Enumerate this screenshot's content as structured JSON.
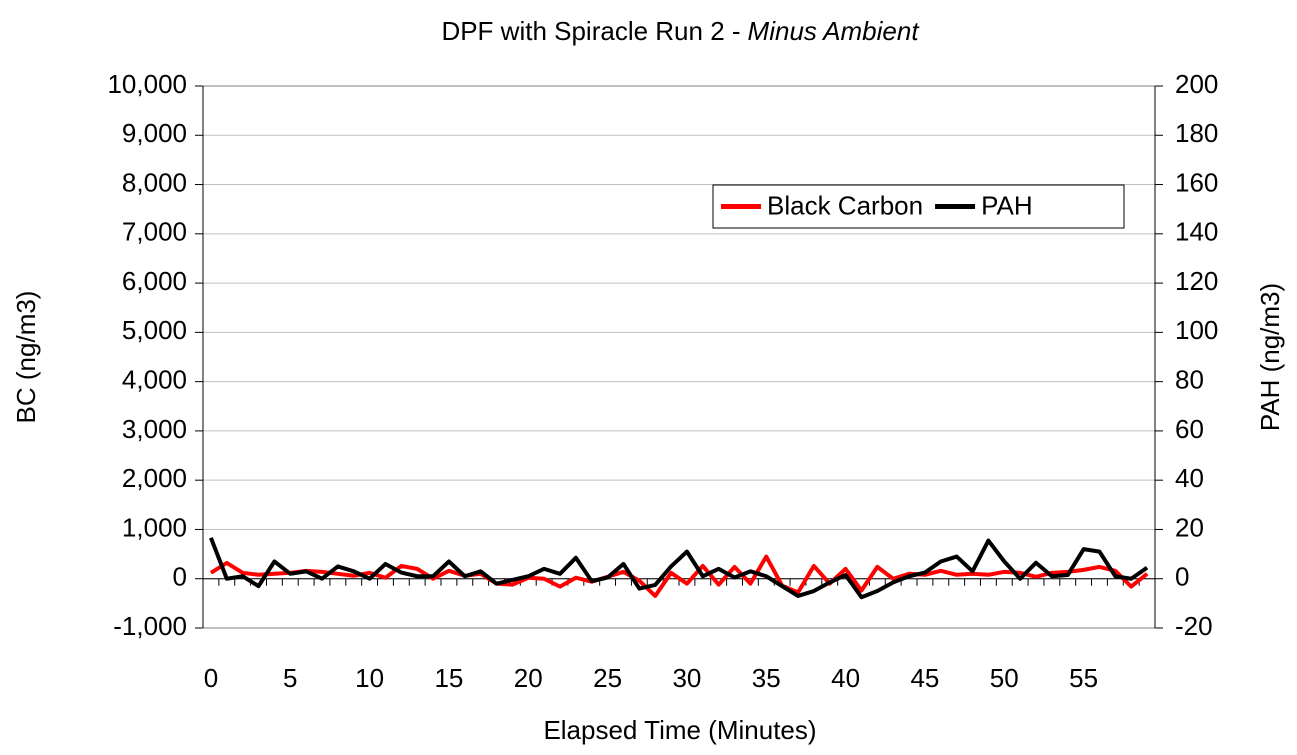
{
  "chart_data": {
    "type": "line",
    "title": "DPF with Spiracle Run 2 -",
    "title_emphasis": "Minus Ambient",
    "x_label": "Elapsed Time (Minutes)",
    "y_label": "BC (ng/m3)",
    "y2_label": "PAH (ng/m3)",
    "categories": [
      0,
      null,
      null,
      null,
      null,
      5,
      null,
      null,
      null,
      null,
      10,
      null,
      null,
      null,
      null,
      15,
      null,
      null,
      null,
      null,
      20,
      null,
      null,
      null,
      null,
      25,
      null,
      null,
      null,
      null,
      30,
      null,
      null,
      null,
      null,
      35,
      null,
      null,
      null,
      null,
      40,
      null,
      null,
      null,
      null,
      45,
      null,
      null,
      null,
      null,
      50,
      null,
      null,
      null,
      null,
      55,
      null,
      null,
      null,
      null
    ],
    "ylim": [
      -1000,
      10000
    ],
    "yticks": [
      {
        "value": -1000,
        "label": "-1,000"
      },
      0,
      {
        "value": 1000,
        "label": "1,000"
      },
      {
        "value": 2000,
        "label": "2,000"
      },
      {
        "value": 3000,
        "label": "3,000"
      },
      {
        "value": 4000,
        "label": "4,000"
      },
      {
        "value": 5000,
        "label": "5,000"
      },
      {
        "value": 6000,
        "label": "6,000"
      },
      {
        "value": 7000,
        "label": "7,000"
      },
      {
        "value": 8000,
        "label": "8,000"
      },
      {
        "value": 9000,
        "label": "9,000"
      },
      {
        "value": 10000,
        "label": "10,000"
      }
    ],
    "y2lim": [
      -20,
      200
    ],
    "y2ticks": [
      -20,
      0,
      20,
      40,
      60,
      80,
      100,
      120,
      140,
      160,
      180,
      200
    ],
    "grid": true,
    "legend": "upper right",
    "series": [
      {
        "name": "Black Carbon",
        "color": "#ff0000",
        "values": [
          120,
          320,
          120,
          80,
          100,
          120,
          160,
          140,
          100,
          60,
          120,
          20,
          260,
          200,
          0,
          160,
          60,
          100,
          -100,
          -120,
          20,
          0,
          -160,
          20,
          -60,
          40,
          140,
          -40,
          -350,
          120,
          -100,
          260,
          -120,
          240,
          -100,
          450,
          -140,
          -280,
          260,
          -100,
          200,
          -240,
          240,
          0,
          100,
          80,
          160,
          80,
          100,
          80,
          140,
          120,
          40,
          120,
          140,
          180,
          240,
          160,
          -160,
          100
        ]
      },
      {
        "name": "PAH",
        "color": "#000000",
        "axis": "y2",
        "values": [
          16.6,
          0,
          1,
          -3,
          7,
          2,
          3,
          0,
          5,
          3,
          0,
          6,
          2.5,
          1,
          1,
          7,
          1,
          3,
          -2,
          -0.5,
          1,
          4,
          2,
          8.5,
          -1,
          0.5,
          6,
          -4,
          -2.5,
          5,
          11,
          1,
          4,
          0.5,
          3,
          1,
          -3,
          -7,
          -5,
          -1.5,
          1.5,
          -7.5,
          -5,
          -1.5,
          1,
          2.5,
          7,
          9,
          3,
          15.5,
          7,
          0,
          6.5,
          1,
          1.5,
          12,
          11,
          1,
          0,
          4.5
        ]
      }
    ]
  }
}
